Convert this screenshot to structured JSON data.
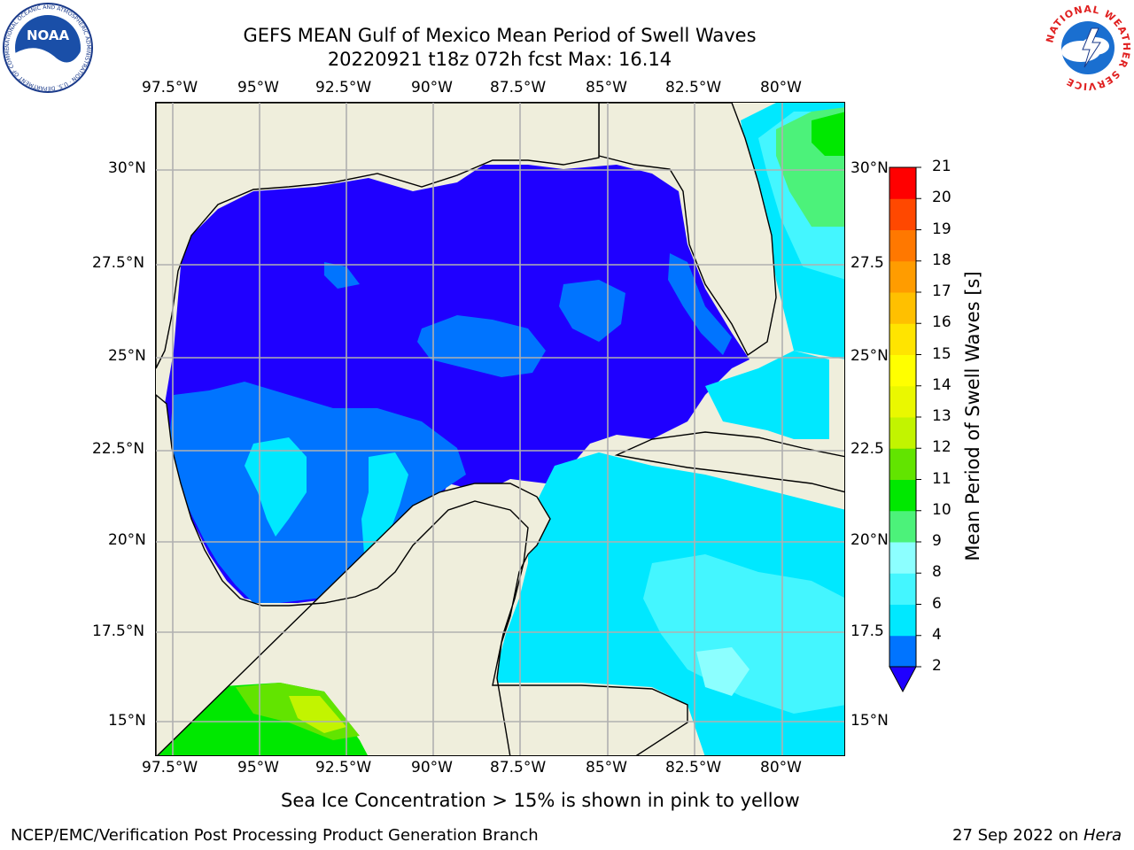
{
  "title": {
    "line1": "GEFS MEAN Gulf of Mexico Mean Period of Swell Waves",
    "line2": "20220921 t18z 072h fcst   Max: 16.14"
  },
  "map": {
    "lon_labels": [
      "97.5°W",
      "95°W",
      "92.5°W",
      "90°W",
      "87.5°W",
      "85°W",
      "82.5°W",
      "80°W"
    ],
    "lat_labels_left": [
      "30°N",
      "27.5°N",
      "25°N",
      "22.5°N",
      "20°N",
      "17.5°N",
      "15°N"
    ],
    "lat_labels_right": [
      "30°N",
      "27.5",
      "25°N",
      "22.5",
      "20°N",
      "17.5",
      "15°N"
    ],
    "lon_extent": [
      -98,
      -78.2
    ],
    "lat_extent": [
      14,
      31.9
    ],
    "colors": {
      "land": "#efeedc",
      "lt2": "#1f00ff",
      "c2_4": "#0074ff",
      "c4_6": "#00e8ff",
      "c6_8": "#44f6ff",
      "c8_9": "#8cffff",
      "c9_10": "#4cf27a",
      "c10_11": "#00e800",
      "c11_12": "#62e400",
      "c12_13": "#c2f400",
      "grid": "#b0b0b0"
    }
  },
  "colorbar": {
    "label": "Mean Period of Swell Waves [s]",
    "ticks": [
      "2",
      "4",
      "6",
      "8",
      "9",
      "10",
      "11",
      "12",
      "13",
      "14",
      "15",
      "16",
      "17",
      "18",
      "19",
      "20",
      "21"
    ],
    "extend_color": "#1f00ff",
    "colors": [
      "#0074ff",
      "#00e8ff",
      "#44f6ff",
      "#8cffff",
      "#4cf27a",
      "#00e800",
      "#62e400",
      "#c2f400",
      "#eaf800",
      "#ffff00",
      "#ffe400",
      "#ffc000",
      "#ff9c00",
      "#ff7800",
      "#ff4800",
      "#ff0000"
    ]
  },
  "footer": {
    "note": "Sea Ice Concentration > 15% is shown in pink to yellow",
    "left": "NCEP/EMC/Verification Post Processing Product Generation Branch",
    "right_text": "27 Sep 2022 on ",
    "right_host": "Hera"
  },
  "logos": {
    "noaa_text": "NOAA",
    "noaa_ring": "NATIONAL OCEANIC AND ATMOSPHERIC ADMINISTRATION · U.S. DEPARTMENT OF COMMERCE",
    "nws_ring": "NATIONAL WEATHER SERVICE"
  }
}
